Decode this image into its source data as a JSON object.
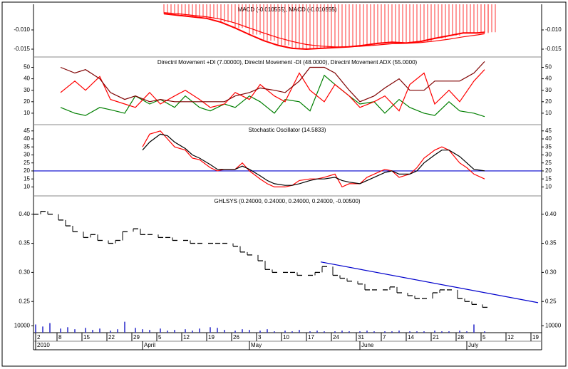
{
  "chart_data": [
    {
      "type": "line",
      "title": "MACD (-0.010555), MACD (-0.010555)",
      "xlim": [
        -0.6,
        142
      ],
      "ylim": [
        -0.01704,
        -0.00333
      ],
      "yticks": [
        {
          "value": -0.01,
          "label": "-0.010"
        },
        -0.015
      ],
      "x": [
        36,
        40,
        44,
        48,
        52,
        56,
        60,
        64,
        68,
        72,
        76,
        80,
        84,
        88,
        92,
        96,
        100,
        104,
        108,
        112,
        116,
        120,
        124,
        126
      ],
      "series": [
        {
          "color": "#ff0000",
          "style": "line+bar",
          "values": [
            -0.0058,
            -0.0062,
            -0.0066,
            -0.007,
            -0.008,
            -0.0095,
            -0.0112,
            -0.0128,
            -0.014,
            -0.0148,
            -0.015,
            -0.0148,
            -0.0146,
            -0.0144,
            -0.014,
            -0.0135,
            -0.0132,
            -0.0134,
            -0.013,
            -0.0122,
            -0.0115,
            -0.0108,
            -0.0108,
            -0.0106
          ]
        },
        {
          "color": "#ff0000",
          "style": "line",
          "values": [
            -0.0055,
            -0.0058,
            -0.0062,
            -0.0066,
            -0.0072,
            -0.0082,
            -0.0095,
            -0.0108,
            -0.012,
            -0.013,
            -0.0138,
            -0.0142,
            -0.0144,
            -0.0144,
            -0.0142,
            -0.0139,
            -0.0136,
            -0.0135,
            -0.0133,
            -0.0129,
            -0.0124,
            -0.0118,
            -0.0113,
            -0.011
          ]
        }
      ]
    },
    {
      "type": "line",
      "title": "Directnl Movement +DI (7.00000), Directnl Movement -DI (48.0000), Directnl Movement ADX (55.0000)",
      "xlim": [
        -0.6,
        142
      ],
      "ylim": [
        0,
        59
      ],
      "yticks": [
        10,
        20,
        30,
        40,
        50
      ],
      "x": [
        7,
        11,
        14,
        18,
        21,
        25,
        28,
        32,
        35,
        39,
        42,
        46,
        49,
        53,
        56,
        60,
        63,
        67,
        70,
        74,
        77,
        81,
        84,
        88,
        91,
        95,
        98,
        102,
        105,
        109,
        112,
        116,
        119,
        123,
        126
      ],
      "series": [
        {
          "color": "#007f00",
          "style": "line",
          "values": [
            15,
            10,
            8,
            15,
            13,
            10,
            25,
            18,
            22,
            15,
            25,
            15,
            12,
            18,
            15,
            25,
            20,
            10,
            22,
            20,
            12,
            43,
            35,
            25,
            18,
            20,
            10,
            22,
            15,
            10,
            8,
            20,
            12,
            10,
            7
          ]
        },
        {
          "color": "#ff0000",
          "style": "line",
          "values": [
            28,
            38,
            30,
            42,
            22,
            18,
            15,
            28,
            18,
            25,
            30,
            22,
            15,
            18,
            28,
            22,
            35,
            25,
            20,
            45,
            30,
            20,
            35,
            25,
            15,
            20,
            25,
            12,
            35,
            45,
            18,
            30,
            20,
            38,
            48
          ]
        },
        {
          "color": "#7f0000",
          "style": "line",
          "values": [
            50,
            45,
            48,
            40,
            28,
            22,
            25,
            20,
            22,
            20,
            20,
            20,
            20,
            20,
            25,
            28,
            32,
            30,
            28,
            38,
            50,
            50,
            45,
            30,
            20,
            25,
            32,
            40,
            30,
            30,
            38,
            38,
            38,
            45,
            55
          ]
        }
      ]
    },
    {
      "type": "line",
      "title": "Stochastic Oscillator (14.5833)",
      "xlim": [
        -0.6,
        142
      ],
      "ylim": [
        4.4,
        48.9
      ],
      "yticks": [
        10,
        15,
        20,
        25,
        30,
        35,
        40,
        45
      ],
      "hline": 20,
      "hline_color": "#0000cc",
      "x": [
        30,
        32,
        35,
        37,
        39,
        42,
        44,
        46,
        49,
        51,
        53,
        56,
        58,
        60,
        63,
        65,
        67,
        70,
        72,
        74,
        77,
        79,
        81,
        84,
        86,
        88,
        91,
        93,
        95,
        98,
        100,
        102,
        105,
        107,
        109,
        112,
        114,
        116,
        119,
        121,
        123,
        126
      ],
      "series": [
        {
          "color": "#ff0000",
          "style": "line",
          "values": [
            35,
            43,
            45,
            40,
            35,
            33,
            28,
            27,
            22,
            20,
            21,
            21,
            25,
            20,
            15,
            12,
            10,
            10,
            11,
            14,
            15,
            15,
            16,
            18,
            10,
            12,
            12,
            16,
            18,
            21,
            20,
            16,
            18,
            22,
            28,
            33,
            35,
            33,
            25,
            22,
            18,
            15
          ]
        },
        {
          "color": "#000000",
          "style": "line",
          "values": [
            33,
            38,
            43,
            42,
            38,
            34,
            30,
            28,
            24,
            21,
            21,
            21,
            23,
            21,
            17,
            14,
            12,
            11,
            11,
            12,
            14,
            15,
            15,
            16,
            14,
            13,
            12,
            14,
            16,
            19,
            20,
            18,
            18,
            20,
            25,
            30,
            33,
            33,
            29,
            25,
            21,
            20
          ]
        }
      ]
    },
    {
      "type": "line",
      "title": "GHLSYS (0.24000, 0.24000, 0.24000, 0.24000, -0.00500)",
      "xlim": [
        -0.6,
        142
      ],
      "ylim": [
        0.2258,
        0.4315
      ],
      "yticks": [
        0.25,
        {
          "value": 0.3,
          "label": "0.30"
        },
        0.35,
        {
          "value": 0.4,
          "label": "0.40"
        }
      ],
      "x": [
        0,
        2,
        4,
        7,
        9,
        11,
        14,
        16,
        18,
        21,
        23,
        25,
        28,
        30,
        32,
        35,
        37,
        39,
        42,
        44,
        46,
        49,
        51,
        53,
        56,
        58,
        60,
        63,
        65,
        67,
        70,
        72,
        74,
        77,
        79,
        81,
        84,
        86,
        88,
        91,
        93,
        95,
        98,
        100,
        102,
        105,
        107,
        109,
        112,
        114,
        116,
        119,
        121,
        123,
        126
      ],
      "series": [
        {
          "color": "#000000",
          "style": "step",
          "values": [
            0.4,
            0.405,
            0.4,
            0.39,
            0.38,
            0.37,
            0.36,
            0.365,
            0.355,
            0.35,
            0.355,
            0.37,
            0.375,
            0.365,
            0.365,
            0.36,
            0.36,
            0.355,
            0.355,
            0.35,
            0.35,
            0.35,
            0.35,
            0.35,
            0.345,
            0.335,
            0.33,
            0.32,
            0.305,
            0.3,
            0.3,
            0.3,
            0.295,
            0.295,
            0.3,
            0.31,
            0.295,
            0.29,
            0.285,
            0.28,
            0.27,
            0.27,
            0.27,
            0.275,
            0.265,
            0.26,
            0.255,
            0.255,
            0.265,
            0.27,
            0.27,
            0.255,
            0.25,
            0.245,
            0.24
          ]
        },
        {
          "color": "#0000cc",
          "style": "line",
          "x": [
            80,
            141
          ],
          "values": [
            0.318,
            0.248
          ]
        }
      ]
    },
    {
      "type": "bar",
      "xlim": [
        -0.6,
        142
      ],
      "ylim": [
        0,
        25000
      ],
      "yticks": [
        10000
      ],
      "x": [
        0,
        2,
        4,
        7,
        9,
        11,
        14,
        16,
        18,
        21,
        23,
        25,
        28,
        30,
        32,
        35,
        37,
        39,
        42,
        44,
        46,
        49,
        51,
        53,
        56,
        58,
        60,
        63,
        65,
        67,
        70,
        72,
        74,
        77,
        79,
        81,
        84,
        86,
        88,
        91,
        93,
        95,
        98,
        100,
        102,
        105,
        107,
        109,
        112,
        114,
        116,
        119,
        121,
        123,
        126
      ],
      "color": "#3333cc",
      "values": [
        12000,
        9000,
        14000,
        6000,
        8000,
        5000,
        7000,
        4000,
        6000,
        3000,
        5000,
        16000,
        7000,
        5000,
        4000,
        6000,
        3000,
        4000,
        5000,
        3000,
        6000,
        8000,
        7000,
        4000,
        3000,
        5000,
        4000,
        3000,
        5000,
        2000,
        3000,
        2000,
        4000,
        2000,
        3000,
        2000,
        2000,
        3000,
        2000,
        2000,
        3000,
        2000,
        2000,
        2000,
        3000,
        2000,
        2000,
        2000,
        3000,
        2000,
        2000,
        3000,
        2000,
        12000,
        2000
      ],
      "xticks": [
        {
          "value": 0,
          "label": "2"
        },
        {
          "value": 6,
          "label": "8"
        },
        {
          "value": 13,
          "label": "15"
        },
        {
          "value": 20,
          "label": "22"
        },
        {
          "value": 27,
          "label": "29"
        },
        {
          "value": 34,
          "label": "5"
        },
        {
          "value": 41,
          "label": "12"
        },
        {
          "value": 48,
          "label": "19"
        },
        {
          "value": 55,
          "label": "26"
        },
        {
          "value": 62,
          "label": "3"
        },
        {
          "value": 69,
          "label": "10"
        },
        {
          "value": 76,
          "label": "17"
        },
        {
          "value": 83,
          "label": "24"
        },
        {
          "value": 90,
          "label": "31"
        },
        {
          "value": 97,
          "label": "7"
        },
        {
          "value": 104,
          "label": "14"
        },
        {
          "value": 111,
          "label": "21"
        },
        {
          "value": 118,
          "label": "28"
        },
        {
          "value": 125,
          "label": "5"
        },
        {
          "value": 132,
          "label": "12"
        },
        {
          "value": 139,
          "label": "19"
        }
      ],
      "xticks2": [
        {
          "value": 0,
          "label": "2010"
        },
        {
          "value": 30,
          "label": "April"
        },
        {
          "value": 60,
          "label": "May"
        },
        {
          "value": 91,
          "label": "June"
        },
        {
          "value": 121,
          "label": "July"
        }
      ]
    }
  ]
}
